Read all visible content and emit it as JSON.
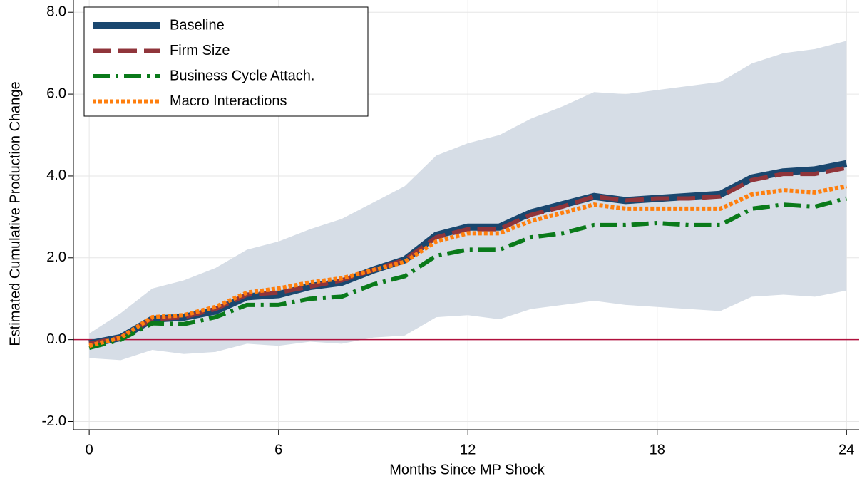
{
  "chart_data": {
    "type": "line",
    "x_label": "Months Since MP Shock",
    "y_label": "Estimated Cumulative Production Change",
    "x": [
      0,
      1,
      2,
      3,
      4,
      5,
      6,
      7,
      8,
      9,
      10,
      11,
      12,
      13,
      14,
      15,
      16,
      17,
      18,
      19,
      20,
      21,
      22,
      23,
      24
    ],
    "xlim": [
      -0.5,
      24.4
    ],
    "xticks": [
      0,
      6,
      12,
      18,
      24
    ],
    "ylim": [
      -2.2,
      8.3
    ],
    "yticks": [
      {
        "value": -2,
        "label": "-2.0"
      },
      {
        "value": 0,
        "label": "0.0"
      },
      {
        "value": 2,
        "label": "2.0"
      },
      {
        "value": 4,
        "label": "4.0"
      },
      {
        "value": 6,
        "label": "6.0"
      },
      {
        "value": 8,
        "label": "8.0"
      }
    ],
    "grid": true,
    "legend": "top-left",
    "band": {
      "color": "#d6dde6",
      "upper": [
        0.15,
        0.65,
        1.25,
        1.45,
        1.75,
        2.2,
        2.4,
        2.7,
        2.95,
        3.35,
        3.75,
        4.5,
        4.8,
        5.0,
        5.4,
        5.7,
        6.05,
        6.0,
        6.1,
        6.2,
        6.3,
        6.75,
        7.0,
        7.1,
        7.3
      ],
      "lower": [
        -0.45,
        -0.5,
        -0.25,
        -0.35,
        -0.3,
        -0.1,
        -0.15,
        -0.05,
        -0.1,
        0.05,
        0.1,
        0.55,
        0.6,
        0.5,
        0.75,
        0.85,
        0.95,
        0.85,
        0.8,
        0.75,
        0.7,
        1.05,
        1.1,
        1.05,
        1.2
      ]
    },
    "reference_line": {
      "value": 0,
      "color": "#b0103c"
    },
    "series": [
      {
        "name": "Baseline",
        "color": "#1a476f",
        "dash": "solid",
        "width": 10,
        "values": [
          -0.1,
          0.05,
          0.5,
          0.55,
          0.7,
          1.05,
          1.1,
          1.3,
          1.4,
          1.7,
          1.95,
          2.55,
          2.75,
          2.75,
          3.1,
          3.3,
          3.5,
          3.4,
          3.45,
          3.5,
          3.55,
          3.95,
          4.1,
          4.15,
          4.3
        ]
      },
      {
        "name": "Firm Size",
        "color": "#90353b",
        "dash": "dashed",
        "width": 6,
        "values": [
          -0.1,
          0.05,
          0.5,
          0.55,
          0.75,
          1.1,
          1.15,
          1.3,
          1.45,
          1.7,
          1.95,
          2.5,
          2.7,
          2.7,
          3.05,
          3.25,
          3.5,
          3.4,
          3.45,
          3.45,
          3.5,
          3.9,
          4.05,
          4.05,
          4.2
        ]
      },
      {
        "name": "Business Cycle Attach.",
        "color": "#0a7a1a",
        "dash": "dashdot",
        "width": 6,
        "values": [
          -0.2,
          0.0,
          0.4,
          0.38,
          0.55,
          0.85,
          0.85,
          1.0,
          1.05,
          1.35,
          1.55,
          2.05,
          2.2,
          2.2,
          2.5,
          2.6,
          2.8,
          2.8,
          2.85,
          2.8,
          2.8,
          3.2,
          3.3,
          3.25,
          3.45
        ]
      },
      {
        "name": "Macro Interactions",
        "color": "#ff7f0e",
        "dash": "dotted",
        "width": 6,
        "values": [
          -0.15,
          0.05,
          0.55,
          0.6,
          0.8,
          1.15,
          1.25,
          1.4,
          1.5,
          1.7,
          1.9,
          2.4,
          2.6,
          2.6,
          2.9,
          3.1,
          3.3,
          3.2,
          3.2,
          3.2,
          3.2,
          3.55,
          3.65,
          3.6,
          3.75
        ]
      }
    ]
  }
}
